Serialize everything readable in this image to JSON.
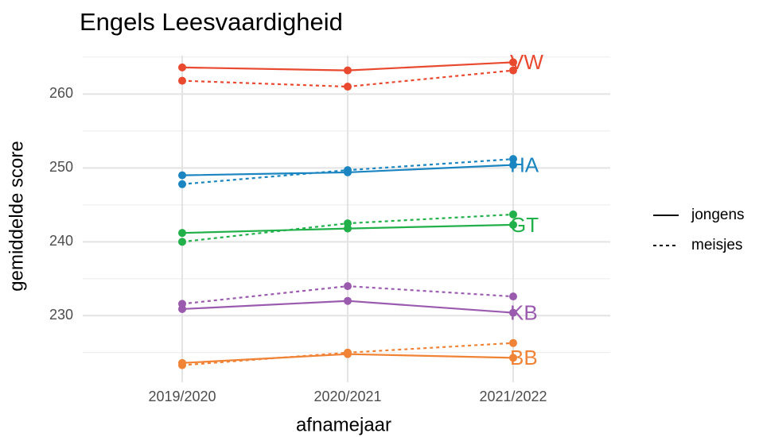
{
  "chart_data": {
    "type": "line",
    "title": "Engels Leesvaardigheid",
    "x_label": "afnamejaar",
    "y_label": "gemiddelde score",
    "categories": [
      "2019/2020",
      "2020/2021",
      "2021/2022"
    ],
    "ylim": [
      221,
      265.2
    ],
    "yticks": [
      230,
      240,
      250,
      260
    ],
    "minor_yticks": [
      225,
      235,
      245,
      255,
      265
    ],
    "grid": true,
    "legend_position": "right",
    "legend": [
      {
        "label": "jongens",
        "dash": "solid"
      },
      {
        "label": "meisjes",
        "dash": "dashed"
      }
    ],
    "series": [
      {
        "name": "VW",
        "color": "#e8492f",
        "dash": "solid",
        "values": [
          263.6,
          263.2,
          264.3
        ]
      },
      {
        "name": "VW",
        "color": "#e8492f",
        "dash": "dashed",
        "values": [
          261.8,
          261.0,
          263.2
        ]
      },
      {
        "name": "HA",
        "color": "#1a85c0",
        "dash": "solid",
        "values": [
          249.0,
          249.4,
          250.4
        ]
      },
      {
        "name": "HA",
        "color": "#1a85c0",
        "dash": "dashed",
        "values": [
          247.8,
          249.7,
          251.2
        ]
      },
      {
        "name": "GT",
        "color": "#22b04b",
        "dash": "solid",
        "values": [
          241.2,
          241.8,
          242.3
        ]
      },
      {
        "name": "GT",
        "color": "#22b04b",
        "dash": "dashed",
        "values": [
          240.0,
          242.5,
          243.7
        ]
      },
      {
        "name": "KB",
        "color": "#9a5baf",
        "dash": "solid",
        "values": [
          230.9,
          232.0,
          230.4
        ]
      },
      {
        "name": "KB",
        "color": "#9a5baf",
        "dash": "dashed",
        "values": [
          231.6,
          234.0,
          232.6
        ]
      },
      {
        "name": "BB",
        "color": "#f08336",
        "dash": "solid",
        "values": [
          223.6,
          224.8,
          224.3
        ]
      },
      {
        "name": "BB",
        "color": "#f08336",
        "dash": "dashed",
        "values": [
          223.3,
          225.0,
          226.3
        ]
      }
    ]
  }
}
